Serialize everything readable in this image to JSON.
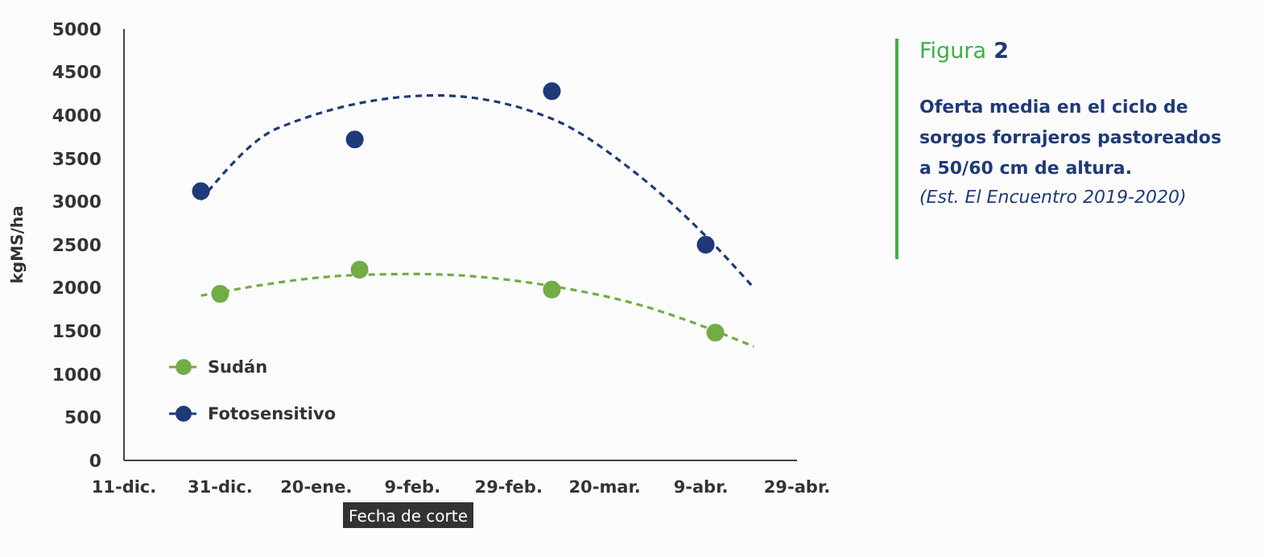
{
  "chart_data": {
    "type": "scatter",
    "title": "Figura 2",
    "subtitle": "Oferta media en el ciclo de sorgos forrajeros pastoreados a 50/60 cm de altura.",
    "annotations": [
      "(Est. El Encuentro 2019-2020)"
    ],
    "xlabel": "Fecha de corte",
    "ylabel": "kgMS/ha",
    "xlim": [
      "2019-12-11",
      "2020-04-29"
    ],
    "xticks": [
      {
        "value": "2019-12-11",
        "label": "11-dic."
      },
      {
        "value": "2019-12-31",
        "label": "31-dic."
      },
      {
        "value": "2020-01-20",
        "label": "20-ene."
      },
      {
        "value": "2020-02-09",
        "label": "9-feb."
      },
      {
        "value": "2020-02-29",
        "label": "29-feb."
      },
      {
        "value": "2020-03-20",
        "label": "20-mar."
      },
      {
        "value": "2020-04-09",
        "label": "9-abr."
      },
      {
        "value": "2020-04-29",
        "label": "29-abr."
      }
    ],
    "ylim": [
      0,
      5000
    ],
    "yticks": [
      0,
      500,
      1000,
      1500,
      2000,
      2500,
      3000,
      3500,
      4000,
      4500,
      5000
    ],
    "grid": false,
    "legend": "bottom left",
    "marker": "circle",
    "series": [
      {
        "name": "Sudán",
        "color": "#72ac45",
        "x": [
          "2019-12-31",
          "2020-01-29",
          "2020-03-09",
          "2020-04-12"
        ],
        "values": [
          1930,
          2210,
          1980,
          1480
        ]
      },
      {
        "name": "Fotosensitivo",
        "color": "#1f3a78",
        "x": [
          "2019-12-27",
          "2020-01-28",
          "2020-03-09",
          "2020-04-10"
        ],
        "values": [
          3120,
          3720,
          4280,
          2500
        ]
      },
      {
        "type": "line",
        "color": "#72ac45",
        "marker": "none",
        "line_style": "dashed",
        "x": [
          "2019-12-27",
          "2020-01-29",
          "2020-02-10",
          "2020-03-09",
          "2020-03-28",
          "2020-04-12",
          "2020-04-20"
        ],
        "values": [
          1910,
          2150,
          2160,
          2020,
          1790,
          1500,
          1320
        ]
      },
      {
        "type": "line",
        "color": "#1f3a78",
        "marker": "none",
        "line_style": "dashed",
        "x": [
          "2019-12-27",
          "2020-01-12",
          "2020-02-14",
          "2020-03-09",
          "2020-03-26",
          "2020-04-10",
          "2020-04-20"
        ],
        "values": [
          3020,
          3850,
          4230,
          3960,
          3350,
          2600,
          2000
        ]
      }
    ]
  }
}
